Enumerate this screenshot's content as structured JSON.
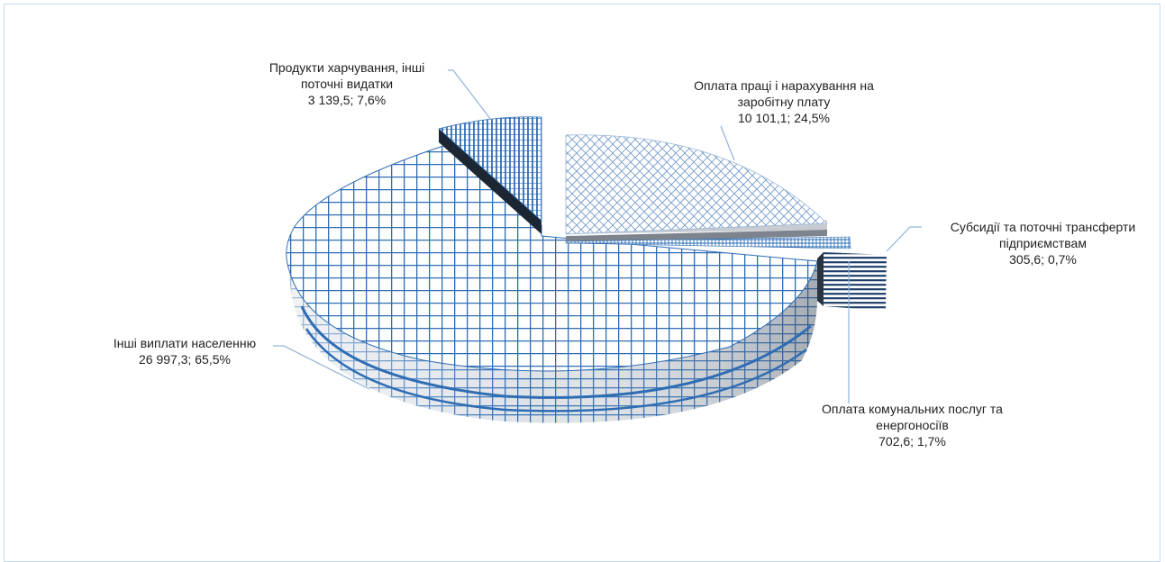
{
  "chart_data": {
    "type": "pie",
    "title": "",
    "slices": [
      {
        "name": "Оплата праці і нарахування на заробітну плату",
        "label_line1": "Оплата праці і нарахування на",
        "label_line2": "заробітну плату",
        "value_label": "10 101,1; 24,5%",
        "value": 10101.1,
        "percent": 24.5
      },
      {
        "name": "Субсидії та поточні трансферти підприємствам",
        "label_line1": "Субсидії та поточні трансферти",
        "label_line2": "підприємствам",
        "value_label": "305,6; 0,7%",
        "value": 305.6,
        "percent": 0.7
      },
      {
        "name": "Оплата комунальних послуг та енергоносіїв",
        "label_line1": "Оплата комунальних послуг та",
        "label_line2": "енергоносіїв",
        "value_label": "702,6; 1,7%",
        "value": 702.6,
        "percent": 1.7
      },
      {
        "name": "Інші виплати населенню",
        "label_line1": "Інші виплати населенню",
        "label_line2": "",
        "value_label": "26 997,3; 65,5%",
        "value": 26997.3,
        "percent": 65.5
      },
      {
        "name": "Продукти харчування, інші поточні видатки",
        "label_line1": "Продукти харчування, інші",
        "label_line2": "поточні видатки",
        "value_label": "3 139,5; 7,6%",
        "value": 3139.5,
        "percent": 7.6
      }
    ],
    "style": "3d-exploded",
    "colors": {
      "pattern": "#2e6db4",
      "leader": "#8fb3d9",
      "frame": "#c9d9ea",
      "dark": "#1d2733"
    }
  }
}
